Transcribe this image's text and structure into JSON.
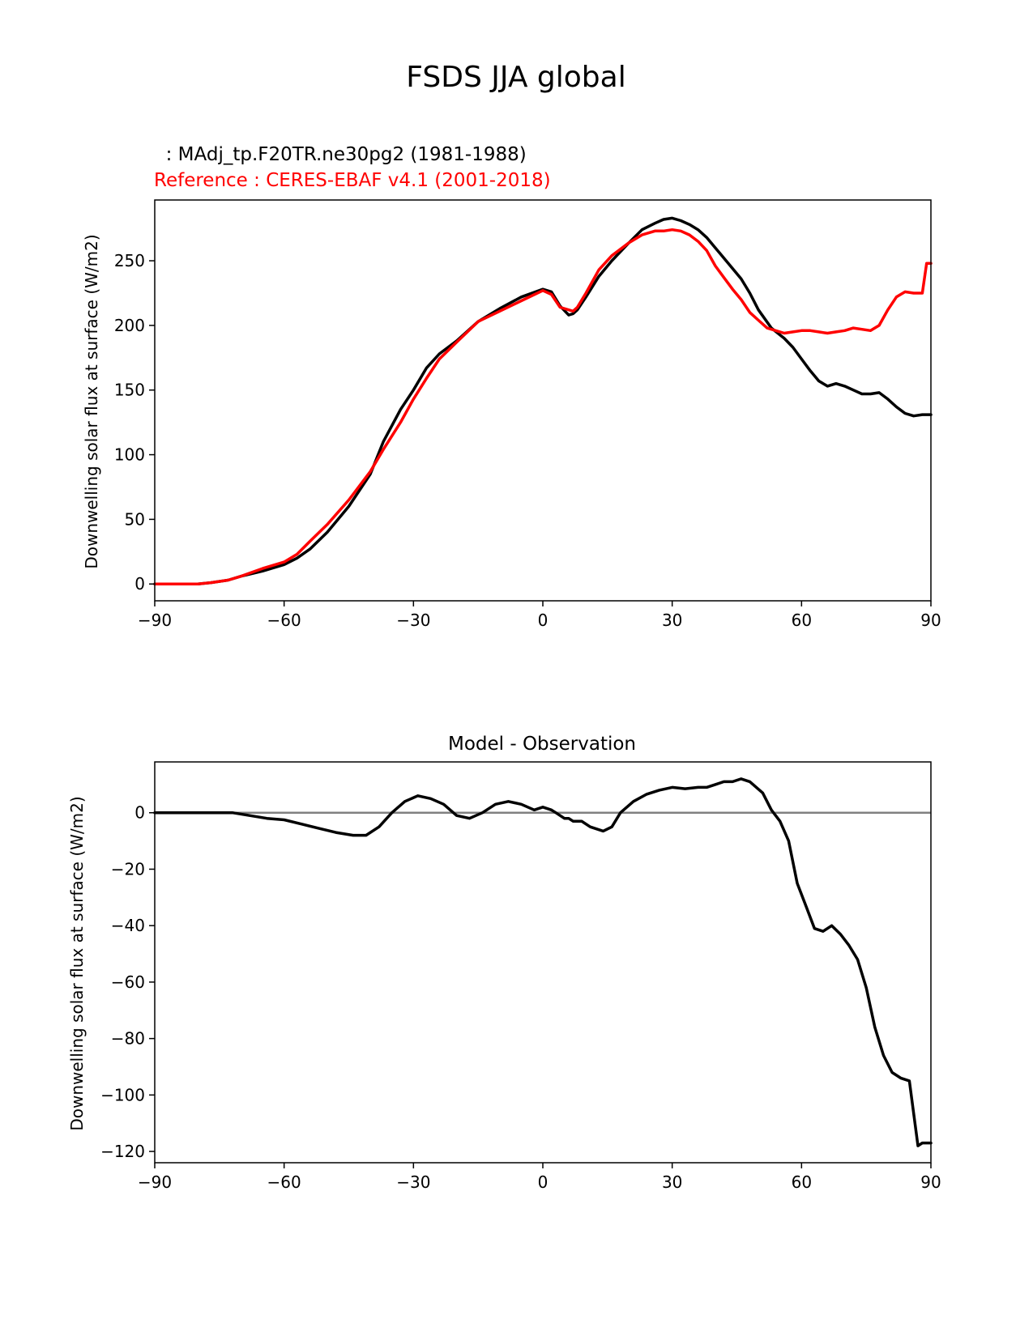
{
  "figure": {
    "title": "FSDS JJA global"
  },
  "chart_data": [
    {
      "type": "line",
      "title": "",
      "model_label": "  : MAdj_tp.F20TR.ne30pg2 (1981-1988)",
      "reference_label": "Reference : CERES-EBAF v4.1 (2001-2018)",
      "xlabel": "",
      "ylabel": "Downwelling solar flux at surface (W/m2)",
      "xlim": [
        -90,
        90
      ],
      "ylim": [
        -13,
        297
      ],
      "xticks": [
        -90,
        -60,
        -30,
        0,
        30,
        60,
        90
      ],
      "xtick_labels": [
        "−90",
        "−60",
        "−30",
        "0",
        "30",
        "60",
        "90"
      ],
      "yticks": [
        0,
        50,
        100,
        150,
        200,
        250
      ],
      "ytick_labels": [
        "0",
        "50",
        "100",
        "150",
        "200",
        "250"
      ],
      "grid": false,
      "series": [
        {
          "color": "#000000",
          "x": [
            -90,
            -85,
            -80,
            -77,
            -73,
            -70,
            -65,
            -60,
            -57,
            -54,
            -50,
            -45,
            -40,
            -37,
            -33,
            -30,
            -27,
            -24,
            -20,
            -15,
            -10,
            -5,
            0,
            2,
            4,
            6,
            7,
            8,
            10,
            13,
            16,
            20,
            23,
            26,
            28,
            30,
            32,
            34,
            36,
            38,
            40,
            43,
            46,
            48,
            50,
            53,
            56,
            58,
            60,
            62,
            64,
            66,
            68,
            70,
            72,
            74,
            76,
            78,
            80,
            82,
            84,
            86,
            88,
            90
          ],
          "y": [
            0,
            0,
            0,
            1,
            3,
            6,
            10,
            15,
            20,
            27,
            40,
            60,
            85,
            110,
            135,
            150,
            167,
            178,
            188,
            203,
            213,
            222,
            228,
            226,
            215,
            208,
            209,
            212,
            222,
            238,
            250,
            264,
            274,
            279,
            282,
            283,
            281,
            278,
            274,
            268,
            260,
            248,
            236,
            225,
            212,
            198,
            190,
            183,
            174,
            165,
            157,
            153,
            155,
            153,
            150,
            147,
            147,
            148,
            143,
            137,
            132,
            130,
            131,
            131
          ]
        },
        {
          "color": "#ff0000",
          "x": [
            -90,
            -85,
            -80,
            -77,
            -73,
            -70,
            -65,
            -60,
            -57,
            -54,
            -50,
            -45,
            -40,
            -37,
            -33,
            -30,
            -27,
            -24,
            -20,
            -15,
            -10,
            -5,
            0,
            2,
            4,
            6,
            7,
            8,
            10,
            13,
            16,
            20,
            23,
            26,
            28,
            30,
            32,
            34,
            36,
            38,
            40,
            42,
            44,
            46,
            48,
            50,
            52,
            54,
            56,
            58,
            60,
            62,
            64,
            66,
            68,
            70,
            72,
            74,
            76,
            78,
            80,
            82,
            84,
            86,
            88,
            89,
            90
          ],
          "y": [
            0,
            0,
            0,
            1,
            3,
            6,
            12,
            17,
            23,
            33,
            46,
            65,
            87,
            104,
            125,
            143,
            159,
            174,
            187,
            203,
            211,
            219,
            227,
            224,
            214,
            212,
            211,
            214,
            225,
            243,
            254,
            264,
            270,
            273,
            273,
            274,
            273,
            270,
            265,
            258,
            246,
            237,
            228,
            220,
            210,
            204,
            198,
            196,
            194,
            195,
            196,
            196,
            195,
            194,
            195,
            196,
            198,
            197,
            196,
            200,
            212,
            222,
            226,
            225,
            225,
            248,
            248
          ]
        }
      ]
    },
    {
      "type": "line",
      "title": "Model - Observation",
      "xlabel": "",
      "ylabel": "Downwelling solar flux at surface (W/m2)",
      "xlim": [
        -90,
        90
      ],
      "ylim": [
        -124,
        18
      ],
      "xticks": [
        -90,
        -60,
        -30,
        0,
        30,
        60,
        90
      ],
      "xtick_labels": [
        "−90",
        "−60",
        "−30",
        "0",
        "30",
        "60",
        "90"
      ],
      "yticks": [
        0,
        -20,
        -40,
        -60,
        -80,
        -100,
        -120
      ],
      "ytick_labels": [
        "0",
        "−20",
        "−40",
        "−60",
        "−80",
        "−100",
        "−120"
      ],
      "grid": false,
      "zero_line_color": "#808080",
      "series": [
        {
          "color": "#000000",
          "x": [
            -90,
            -80,
            -72,
            -68,
            -64,
            -60,
            -56,
            -52,
            -48,
            -44,
            -41,
            -38,
            -35,
            -32,
            -29,
            -26,
            -23,
            -20,
            -17,
            -14,
            -11,
            -8,
            -5,
            -2,
            0,
            2,
            3,
            5,
            6,
            7,
            9,
            11,
            14,
            16,
            18,
            21,
            24,
            27,
            30,
            33,
            36,
            38,
            40,
            42,
            44,
            46,
            48,
            51,
            53,
            55,
            57,
            59,
            61,
            63,
            65,
            67,
            69,
            71,
            73,
            75,
            77,
            79,
            81,
            83,
            85,
            87,
            88,
            89,
            90
          ],
          "y": [
            0,
            0,
            0,
            -1,
            -2,
            -2.5,
            -4,
            -5.5,
            -7,
            -8,
            -8,
            -5,
            0,
            4,
            6,
            5,
            3,
            -1,
            -2,
            0,
            3,
            4,
            3,
            1,
            2,
            1,
            0,
            -2,
            -2,
            -3,
            -3,
            -5,
            -6.5,
            -5,
            0,
            4,
            6.5,
            8,
            9,
            8.5,
            9,
            9,
            10,
            11,
            11,
            12,
            11,
            7,
            1,
            -3,
            -10,
            -25,
            -33,
            -41,
            -42,
            -40,
            -43,
            -47,
            -52,
            -62,
            -76,
            -86,
            -92,
            -94,
            -95,
            -118,
            -117,
            -117,
            -117
          ]
        }
      ]
    }
  ]
}
